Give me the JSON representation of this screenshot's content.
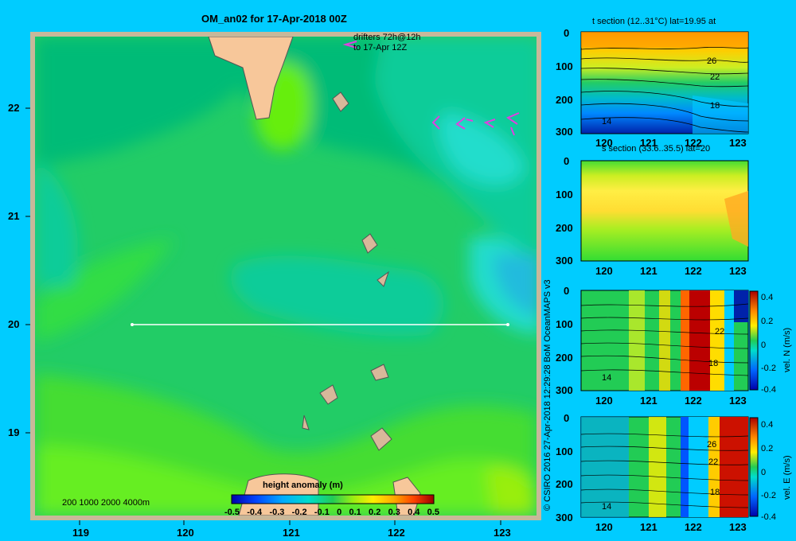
{
  "main_map": {
    "title": "OM_an02 for 17-Apr-2018 00Z",
    "drifter_note_line1": "drifters 72h@12h",
    "drifter_note_line2": "to 17-Apr 12Z",
    "depth_legend": "200  1000  2000  4000m",
    "section_line_label": "",
    "colors": {
      "bg": "#00ccff",
      "frame": "#c8b89a",
      "land": "#f7c79a",
      "drifter": "#e040e0"
    }
  },
  "colorbar": {
    "title": "height anomaly  (m)",
    "ticks": [
      "-0.5",
      "-0.4",
      "-0.3",
      "-0.2",
      "-0.1",
      "0",
      "0.1",
      "0.2",
      "0.3",
      "0.4",
      "0.5"
    ]
  },
  "copyright": "© CSIRO 2016   27-Apr-2018 12:29:28 BoM OceanMAPS v3",
  "panels": {
    "t": {
      "title": "t section (12..31°C) lat=19.95 at"
    },
    "s": {
      "title": "s section (33.6..35.5) lat=20"
    },
    "vn": {
      "cbar_label": "vel. N  (m/s)"
    },
    "ve": {
      "cbar_label": "vel. E  (m/s)"
    }
  },
  "chart_data": [
    {
      "type": "heatmap",
      "title": "OM_an02 for 17-Apr-2018 00Z",
      "variable": "height anomaly (m)",
      "x_ticks": [
        "119",
        "120",
        "121",
        "122",
        "123"
      ],
      "y_ticks": [
        "22",
        "21",
        "20",
        "19"
      ],
      "xlim": [
        118.5,
        123.5
      ],
      "ylim": [
        18.3,
        22.7
      ],
      "color_range": [
        -0.5,
        0.5
      ],
      "section_line": {
        "lon": [
          119.5,
          123.2
        ],
        "lat": 20
      }
    },
    {
      "type": "heatmap",
      "title": "t section (12..31°C) lat=19.95 at",
      "x_ticks": [
        "120",
        "121",
        "122",
        "123"
      ],
      "y_ticks": [
        "0",
        "100",
        "200",
        "300"
      ],
      "contour_labels": [
        "26",
        "22",
        "18",
        "14"
      ]
    },
    {
      "type": "heatmap",
      "title": "s section (33.6..35.5) lat=20",
      "x_ticks": [
        "120",
        "121",
        "122",
        "123"
      ],
      "y_ticks": [
        "0",
        "100",
        "200",
        "300"
      ]
    },
    {
      "type": "heatmap",
      "ylabel": "vel. N  (m/s)",
      "x_ticks": [
        "120",
        "121",
        "122",
        "123"
      ],
      "y_ticks": [
        "0",
        "100",
        "200",
        "300"
      ],
      "contour_labels": [
        "22",
        "18",
        "14"
      ],
      "cbar_ticks": [
        "0.4",
        "0.2",
        "0",
        "-0.2",
        "-0.4"
      ]
    },
    {
      "type": "heatmap",
      "ylabel": "vel. E  (m/s)",
      "x_ticks": [
        "120",
        "121",
        "122",
        "123"
      ],
      "y_ticks": [
        "0",
        "100",
        "200",
        "300"
      ],
      "contour_labels": [
        "26",
        "22",
        "18",
        "14"
      ],
      "cbar_ticks": [
        "0.4",
        "0.2",
        "0",
        "-0.2",
        "-0.4"
      ]
    }
  ]
}
